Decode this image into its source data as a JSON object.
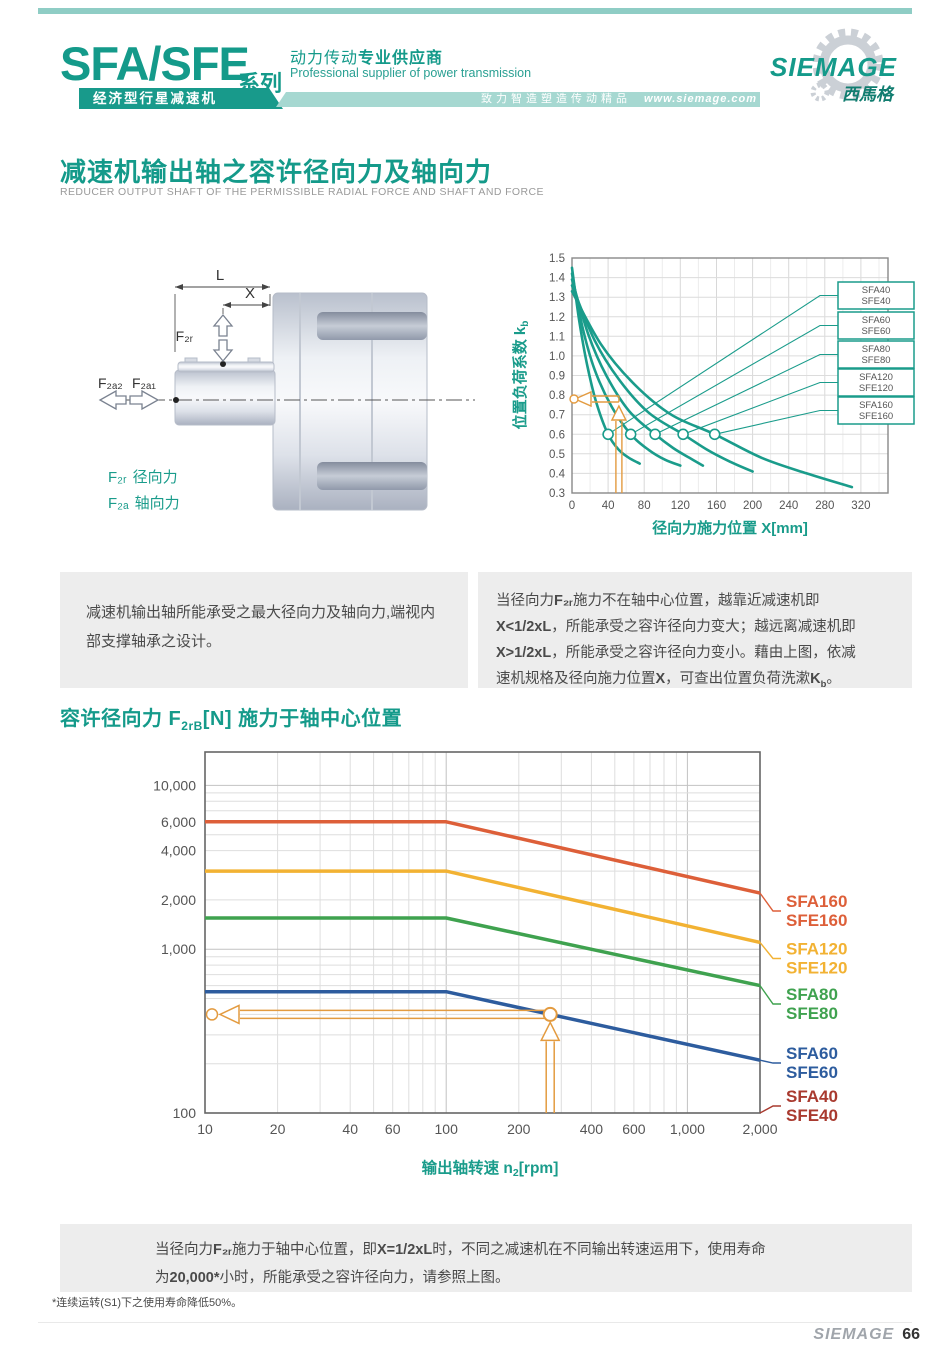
{
  "header": {
    "series": "SFA/SFE",
    "series_suffix": "系列",
    "tagline_zh": [
      {
        "t": "动力传动"
      },
      {
        "t": "专业供应商",
        "b": true
      }
    ],
    "tagline_en": "Professional supplier of power transmission",
    "banner_product": "经济型行星减速机",
    "banner_slogan": "致力智造塑造传动精品",
    "banner_url": "www.siemage.com",
    "logo_name": "SIEMAGE",
    "logo_cn": "西馬格"
  },
  "section1": {
    "title": "减速机输出轴之容许径向力及轴向力",
    "subtitle": "REDUCER OUTPUT SHAFT OF THE PERMISSIBLE RADIAL FORCE AND SHAFT AND FORCE"
  },
  "diagram": {
    "dim_l": "L",
    "dim_x": "X",
    "f2r": "F₂ᵣ",
    "f2a2": "F₂ₐ₂",
    "f2a1": "F₂ₐ₁",
    "legend_f2r_sym": "F₂ᵣ",
    "legend_f2r_label": "径向力",
    "legend_f2a_sym": "F₂ₐ",
    "legend_f2a_label": "轴向力"
  },
  "section2": {
    "title_prefix": "容许径向力 F",
    "title_sub": "2rB",
    "title_suffix": "[N] 施力于轴中心位置"
  },
  "notes": {
    "box1": [
      {
        "t": "减速机输出轴所能承受之最大径向力及轴向力,端视内\n部支撑轴承之设计。"
      }
    ],
    "box2": [
      {
        "t": "当径向力"
      },
      {
        "t": "F₂ᵣ",
        "b": true
      },
      {
        "t": "施力不在轴中心位置，越靠近减速机即\n"
      },
      {
        "t": "X<1/2xL",
        "b": true
      },
      {
        "t": "，所能承受之容许径向力变大；越远离减速机即\n"
      },
      {
        "t": "X>1/2xL",
        "b": true
      },
      {
        "t": "，所能承受之容许径向力变小。藉由上图，依减\n"
      },
      {
        "t": "速机规格及径向施力位置"
      },
      {
        "t": "X",
        "b": true
      },
      {
        "t": "，可查出位置负荷洗漱"
      },
      {
        "t": "K",
        "b": true
      },
      {
        "t": "b",
        "b": true,
        "sub": true
      },
      {
        "t": "。"
      }
    ],
    "box3": [
      {
        "t": "当径向力"
      },
      {
        "t": "F₂ᵣ",
        "b": true
      },
      {
        "t": "施力于轴中心位置，即"
      },
      {
        "t": "X=1/2xL",
        "b": true
      },
      {
        "t": "时，不同之减速机在不同输出转速运用下，使用寿命\n"
      },
      {
        "t": "为"
      },
      {
        "t": "20,000*",
        "b": true
      },
      {
        "t": "小时，所能承受之容许径向力，请参照上图。"
      }
    ],
    "footnote": "*连续运转(S1)下之使用寿命降低50%。"
  },
  "footer": {
    "brand": "SIEMAGE",
    "page_number": "66"
  },
  "chart_data": [
    {
      "type": "line",
      "title": "位置负荷系数曲线",
      "xlabel": "径向力施力位置 X[mm]",
      "ylabel_main": "位置负荷系数 k",
      "ylabel_sub": "b",
      "xlim": [
        0,
        350
      ],
      "ylim": [
        0.3,
        1.5
      ],
      "xticks": [
        0,
        40,
        80,
        120,
        160,
        200,
        240,
        280,
        320
      ],
      "yticks": [
        0.3,
        0.4,
        0.5,
        0.6,
        0.7,
        0.8,
        0.9,
        1.0,
        1.1,
        1.2,
        1.3,
        1.4,
        1.5
      ],
      "grid": true,
      "line_color": "#1a9c8b",
      "series": [
        {
          "name": "SFA40 / SFE40",
          "points": [
            [
              0,
              1.45
            ],
            [
              8,
              1.18
            ],
            [
              17,
              0.95
            ],
            [
              27,
              0.76
            ],
            [
              40,
              0.6
            ],
            [
              52,
              0.52
            ],
            [
              63,
              0.48
            ],
            [
              75,
              0.45
            ]
          ],
          "marker_at": [
            40,
            0.6
          ]
        },
        {
          "name": "SFA60 / SFE60",
          "points": [
            [
              0,
              1.42
            ],
            [
              12,
              1.14
            ],
            [
              25,
              0.93
            ],
            [
              44,
              0.74
            ],
            [
              65,
              0.6
            ],
            [
              85,
              0.52
            ],
            [
              103,
              0.47
            ],
            [
              120,
              0.44
            ]
          ],
          "marker_at": [
            65,
            0.6
          ]
        },
        {
          "name": "SFA80 / SFE80",
          "points": [
            [
              0,
              1.39
            ],
            [
              18,
              1.11
            ],
            [
              38,
              0.9
            ],
            [
              63,
              0.72
            ],
            [
              92,
              0.6
            ],
            [
              112,
              0.53
            ],
            [
              130,
              0.48
            ],
            [
              145,
              0.44
            ]
          ],
          "marker_at": [
            92,
            0.6
          ]
        },
        {
          "name": "SFA120 / SFE120",
          "points": [
            [
              0,
              1.36
            ],
            [
              25,
              1.08
            ],
            [
              52,
              0.88
            ],
            [
              85,
              0.71
            ],
            [
              123,
              0.6
            ],
            [
              150,
              0.52
            ],
            [
              175,
              0.46
            ],
            [
              200,
              0.41
            ]
          ],
          "marker_at": [
            123,
            0.6
          ]
        },
        {
          "name": "SFA160 / SFE160",
          "points": [
            [
              0,
              1.33
            ],
            [
              32,
              1.06
            ],
            [
              68,
              0.86
            ],
            [
              110,
              0.7
            ],
            [
              158,
              0.6
            ],
            [
              210,
              0.48
            ],
            [
              260,
              0.4
            ],
            [
              310,
              0.33
            ]
          ],
          "marker_at": [
            158,
            0.6
          ]
        }
      ],
      "legend_boxes": [
        [
          "SFA40",
          "SFE40"
        ],
        [
          "SFA60",
          "SFE60"
        ],
        [
          "SFA80",
          "SFE80"
        ],
        [
          "SFA120",
          "SFE120"
        ],
        [
          "SFA160",
          "SFE160"
        ]
      ],
      "legend_position": "right",
      "annotation": {
        "x_mm": 52,
        "kb": 0.78,
        "color": "#e39b40"
      }
    },
    {
      "type": "line",
      "title": "容许径向力 F2rB[N] 施力于轴中心位置",
      "xscale": "log",
      "yscale": "log",
      "xlabel_main": "输出轴转速 n",
      "xlabel_sub": "2",
      "xlabel_unit": "[rpm]",
      "xlim": [
        10,
        2000
      ],
      "ylim": [
        100,
        16000
      ],
      "xticks": [
        [
          10,
          "10"
        ],
        [
          20,
          "20"
        ],
        [
          40,
          "40"
        ],
        [
          60,
          "60"
        ],
        [
          100,
          "100"
        ],
        [
          200,
          "200"
        ],
        [
          400,
          "400"
        ],
        [
          600,
          "600"
        ],
        [
          1000,
          "1,000"
        ],
        [
          2000,
          "2,000"
        ]
      ],
      "yticks": [
        [
          100,
          "100"
        ],
        [
          1000,
          "1,000"
        ],
        [
          2000,
          "2,000"
        ],
        [
          4000,
          "4,000"
        ],
        [
          6000,
          "6,000"
        ],
        [
          10000,
          "10,000"
        ]
      ],
      "grid": true,
      "series": [
        {
          "name1": "SFA160",
          "name2": "SFE160",
          "color": "#dd5f39",
          "points": [
            [
              10,
              6000
            ],
            [
              100,
              6000
            ],
            [
              2000,
              2200
            ]
          ]
        },
        {
          "name1": "SFA120",
          "name2": "SFE120",
          "color": "#f2b233",
          "points": [
            [
              10,
              3000
            ],
            [
              100,
              3000
            ],
            [
              2000,
              1100
            ]
          ]
        },
        {
          "name1": "SFA80",
          "name2": "SFE80",
          "color": "#3fa24f",
          "points": [
            [
              10,
              1550
            ],
            [
              100,
              1550
            ],
            [
              2000,
              600
            ]
          ]
        },
        {
          "name1": "SFA60",
          "name2": "SFE60",
          "color": "#2d5c9e",
          "points": [
            [
              10,
              550
            ],
            [
              100,
              550
            ],
            [
              2000,
              210
            ]
          ]
        },
        {
          "name1": "SFA40",
          "name2": "SFE40",
          "color": "#a93a2f",
          "points": []
        }
      ],
      "annotation": {
        "n2": 270,
        "f2rb": 400,
        "color": "#e39b40"
      }
    }
  ]
}
